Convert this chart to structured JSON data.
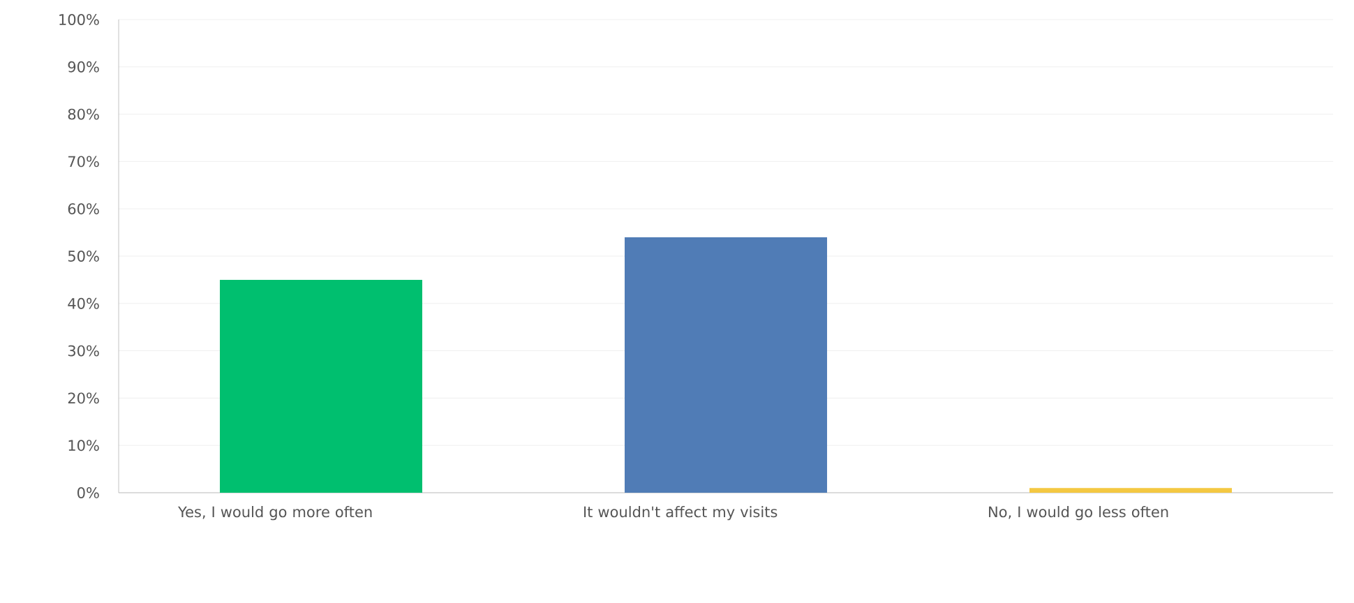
{
  "chart_data": {
    "type": "bar",
    "categories": [
      "Yes, I would go more often",
      "It wouldn't affect my visits",
      "No, I would go less often"
    ],
    "values": [
      45,
      54,
      1
    ],
    "colors": [
      "#00bf6f",
      "#507cb6",
      "#f4c842"
    ],
    "ylim": [
      0,
      100
    ],
    "yticks": [
      {
        "value": 0,
        "label": "0%"
      },
      {
        "value": 10,
        "label": "10%"
      },
      {
        "value": 20,
        "label": "20%"
      },
      {
        "value": 30,
        "label": "30%"
      },
      {
        "value": 40,
        "label": "40%"
      },
      {
        "value": 50,
        "label": "50%"
      },
      {
        "value": 60,
        "label": "60%"
      },
      {
        "value": 70,
        "label": "70%"
      },
      {
        "value": 80,
        "label": "80%"
      },
      {
        "value": 90,
        "label": "90%"
      },
      {
        "value": 100,
        "label": "100%"
      }
    ],
    "grid": "y"
  }
}
